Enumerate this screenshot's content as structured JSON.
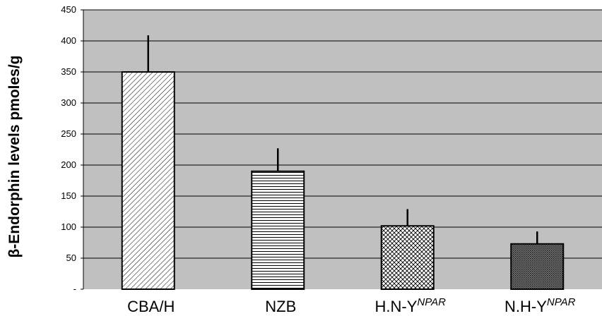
{
  "chart_data": {
    "type": "bar",
    "title": "",
    "xlabel": "",
    "ylabel": "β-Endorphin levels pmoles/g",
    "ylim": [
      0,
      450
    ],
    "yticks": [
      "-",
      "50",
      "100",
      "150",
      "200",
      "250",
      "300",
      "350",
      "400",
      "450"
    ],
    "categories": [
      {
        "label": "CBA/H",
        "sup": ""
      },
      {
        "label": "NZB",
        "sup": ""
      },
      {
        "label": "H.N-Y",
        "sup": "NPAR"
      },
      {
        "label": "N.H-Y",
        "sup": "NPAR"
      }
    ],
    "values": [
      350,
      190,
      102,
      73
    ],
    "error_upper": [
      409,
      227,
      129,
      93
    ],
    "patterns": [
      "diagonal-hatch",
      "horizontal-lines",
      "crosshatch",
      "dense-dots"
    ],
    "grid": true,
    "legend": "none",
    "colors": {
      "plot_bg": "#c0c0c0",
      "bar_fill": "#ffffff",
      "line": "#000000"
    }
  }
}
